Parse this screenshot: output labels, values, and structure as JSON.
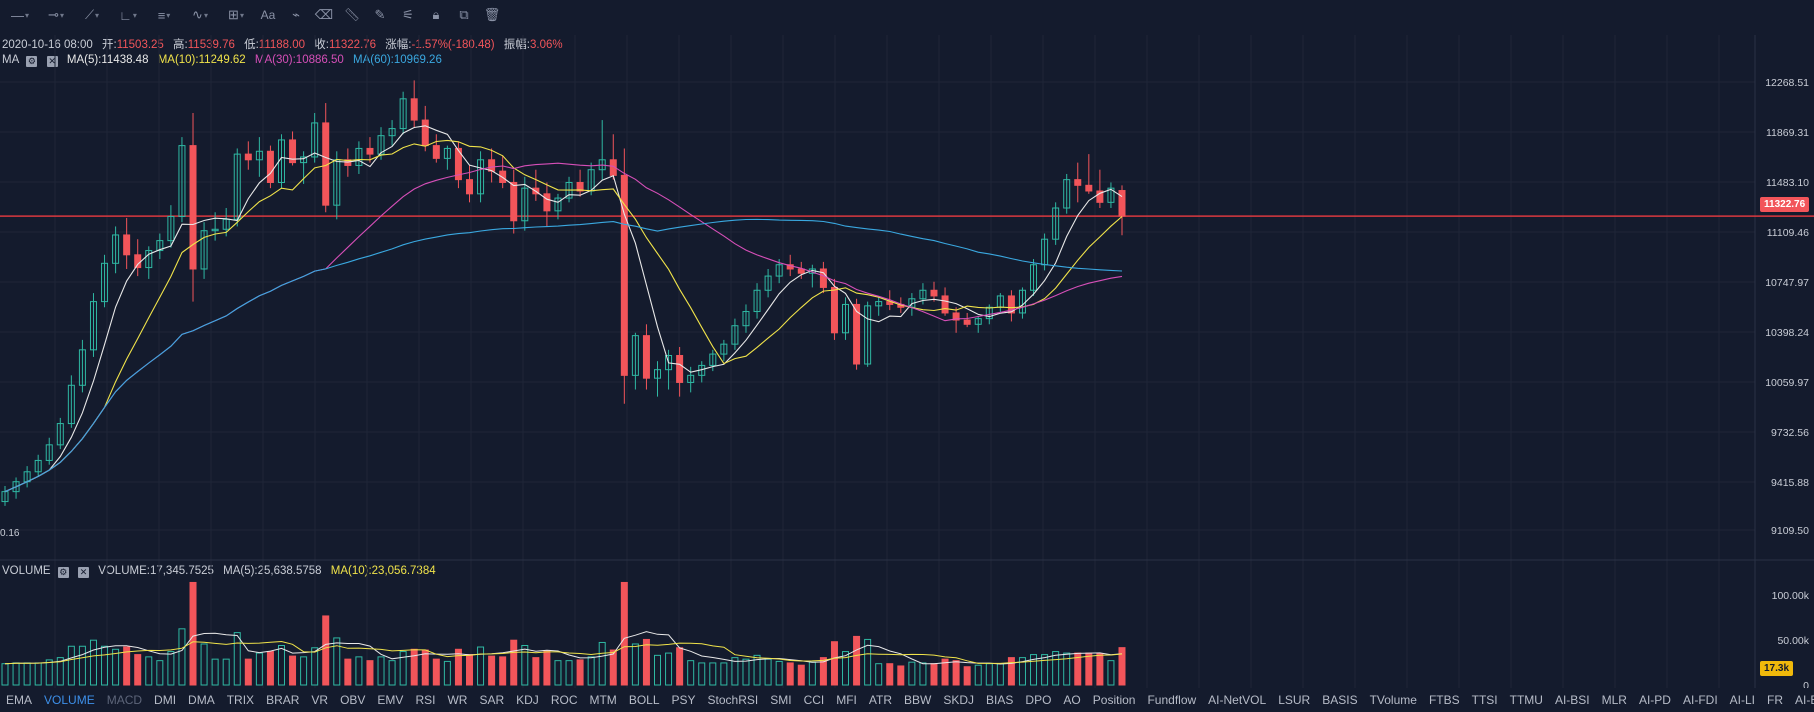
{
  "toolbar": {
    "icons": [
      "horizontal-line-icon",
      "ray-line-icon",
      "trend-line-icon",
      "angle-line-icon",
      "fib-lines-icon",
      "wave-icon",
      "grid-add-icon",
      "text-tool-icon",
      "magnet-icon",
      "eraser-icon",
      "ruler-icon",
      "brush-icon",
      "sliders-icon",
      "lock-icon",
      "copy-icon",
      "trash-icon"
    ],
    "text_tool_label": "Aa"
  },
  "ohlc": {
    "date": "2020-10-16 08:00",
    "open_label": "开:",
    "open": "11503.25",
    "high_label": "高:",
    "high": "11539.76",
    "low_label": "低:",
    "low": "11188.00",
    "close_label": "收:",
    "close": "11322.76",
    "change_label": "涨幅:",
    "change": "-1.57%(-180.48)",
    "amp_label": "振幅:",
    "amp": "3.06%"
  },
  "ma_row": {
    "name": "MA",
    "ma5": "MA(5):11438.48",
    "ma10": "MA(10):11249.62",
    "ma30": "MA(30):10886.50",
    "ma60": "MA(60):10969.26"
  },
  "vol_row": {
    "name": "VOLUME",
    "volume": "VOLUME:17,345.7525",
    "ma5": "MA(5):25,638.5758",
    "ma10": "MA(10):23,056.7384"
  },
  "price_axis": {
    "ticks": [
      "12268.51",
      "11869.31",
      "11483.10",
      "11109.46",
      "10747.97",
      "10398.24",
      "10059.97",
      "9732.56",
      "9415.88",
      "9109.50"
    ],
    "current_price": "11322.76",
    "low_marker": "0.16"
  },
  "volume_axis": {
    "ticks": [
      "100.00k",
      "50.00k",
      "0"
    ],
    "current_volume": "17.3k"
  },
  "colors": {
    "up": "#2fb8a3",
    "down": "#f2555a",
    "ma5": "#e8e8e8",
    "ma10": "#f0e34a",
    "ma30": "#d64fb8",
    "ma60": "#3aa8e0",
    "accent": "#3d8fe8",
    "background": "#141b2d"
  },
  "indicators": {
    "active": "VOLUME",
    "muted": "MACD",
    "items": [
      "EMA",
      "VOLUME",
      "MACD",
      "DMI",
      "DMA",
      "TRIX",
      "BRAR",
      "VR",
      "OBV",
      "EMV",
      "RSI",
      "WR",
      "SAR",
      "KDJ",
      "ROC",
      "MTM",
      "BOLL",
      "PSY",
      "StochRSI",
      "SMI",
      "CCI",
      "MFI",
      "ATR",
      "BBW",
      "SKDJ",
      "BIAS",
      "DPO",
      "AO",
      "Position",
      "Fundflow",
      "AI-NetVOL",
      "LSUR",
      "BASIS",
      "TVolume",
      "FTBS",
      "TTSI",
      "TTMU",
      "AI-BSI",
      "MLR",
      "AI-PD",
      "AI-FDI",
      "AI-LI",
      "FR",
      "AI-BST"
    ]
  },
  "chart_data": {
    "type": "candlestick",
    "price_range": [
      9109.5,
      12268.51
    ],
    "current_price": 11322.76,
    "candles": [
      [
        9310,
        9420,
        9280,
        9380
      ],
      [
        9380,
        9480,
        9330,
        9450
      ],
      [
        9450,
        9560,
        9410,
        9520
      ],
      [
        9520,
        9640,
        9490,
        9600
      ],
      [
        9600,
        9760,
        9570,
        9710
      ],
      [
        9710,
        9900,
        9680,
        9860
      ],
      [
        9860,
        10200,
        9830,
        10130
      ],
      [
        10130,
        10450,
        10080,
        10380
      ],
      [
        10380,
        10780,
        10330,
        10720
      ],
      [
        10720,
        11050,
        10680,
        10990
      ],
      [
        10990,
        11250,
        10920,
        11190
      ],
      [
        11190,
        11310,
        10950,
        11050
      ],
      [
        11050,
        11160,
        10900,
        10960
      ],
      [
        10960,
        11110,
        10880,
        11080
      ],
      [
        11080,
        11200,
        11020,
        11150
      ],
      [
        11150,
        11400,
        11100,
        11320
      ],
      [
        11320,
        11880,
        11280,
        11820
      ],
      [
        11820,
        12050,
        10720,
        10950
      ],
      [
        10950,
        11280,
        10880,
        11220
      ],
      [
        11220,
        11350,
        11150,
        11230
      ],
      [
        11230,
        11380,
        11180,
        11300
      ],
      [
        11300,
        11800,
        11250,
        11760
      ],
      [
        11760,
        11850,
        11650,
        11720
      ],
      [
        11720,
        11880,
        11600,
        11780
      ],
      [
        11780,
        11820,
        11520,
        11560
      ],
      [
        11560,
        11900,
        11520,
        11860
      ],
      [
        11860,
        11920,
        11680,
        11700
      ],
      [
        11700,
        11780,
        11550,
        11740
      ],
      [
        11740,
        12050,
        11700,
        11980
      ],
      [
        11980,
        12120,
        11350,
        11400
      ],
      [
        11400,
        11780,
        11300,
        11720
      ],
      [
        11720,
        11800,
        11600,
        11680
      ],
      [
        11680,
        11850,
        11620,
        11800
      ],
      [
        11800,
        11880,
        11700,
        11760
      ],
      [
        11760,
        11950,
        11720,
        11890
      ],
      [
        11890,
        12000,
        11820,
        11940
      ],
      [
        11940,
        12200,
        11900,
        12150
      ],
      [
        12150,
        12280,
        11950,
        12000
      ],
      [
        12000,
        12100,
        11780,
        11820
      ],
      [
        11820,
        11900,
        11700,
        11730
      ],
      [
        11730,
        11820,
        11650,
        11800
      ],
      [
        11800,
        11850,
        11520,
        11580
      ],
      [
        11580,
        11680,
        11420,
        11480
      ],
      [
        11480,
        11780,
        11420,
        11720
      ],
      [
        11720,
        11800,
        11560,
        11640
      ],
      [
        11640,
        11750,
        11520,
        11560
      ],
      [
        11560,
        11650,
        11200,
        11290
      ],
      [
        11290,
        11600,
        11220,
        11520
      ],
      [
        11520,
        11650,
        11430,
        11480
      ],
      [
        11480,
        11560,
        11250,
        11360
      ],
      [
        11360,
        11480,
        11300,
        11450
      ],
      [
        11450,
        11600,
        11420,
        11560
      ],
      [
        11560,
        11650,
        11460,
        11500
      ],
      [
        11500,
        11700,
        11470,
        11650
      ],
      [
        11650,
        12000,
        11580,
        11720
      ],
      [
        11720,
        11900,
        11580,
        11610
      ],
      [
        11610,
        11800,
        10000,
        10200
      ],
      [
        10200,
        10500,
        10100,
        10480
      ],
      [
        10480,
        10560,
        10100,
        10180
      ],
      [
        10180,
        10300,
        10050,
        10240
      ],
      [
        10240,
        10380,
        10100,
        10340
      ],
      [
        10340,
        10400,
        10050,
        10150
      ],
      [
        10150,
        10260,
        10080,
        10200
      ],
      [
        10200,
        10300,
        10150,
        10270
      ],
      [
        10270,
        10380,
        10230,
        10350
      ],
      [
        10350,
        10450,
        10300,
        10420
      ],
      [
        10420,
        10600,
        10380,
        10550
      ],
      [
        10550,
        10700,
        10500,
        10650
      ],
      [
        10650,
        10850,
        10600,
        10800
      ],
      [
        10800,
        10950,
        10750,
        10900
      ],
      [
        10900,
        11020,
        10850,
        10980
      ],
      [
        10980,
        11050,
        10900,
        10950
      ],
      [
        10950,
        11000,
        10880,
        10920
      ],
      [
        10920,
        10980,
        10820,
        10950
      ],
      [
        10950,
        11000,
        10780,
        10820
      ],
      [
        10820,
        10880,
        10450,
        10500
      ],
      [
        10500,
        10750,
        10450,
        10700
      ],
      [
        10700,
        10740,
        10240,
        10280
      ],
      [
        10280,
        10720,
        10260,
        10690
      ],
      [
        10690,
        10760,
        10620,
        10720
      ],
      [
        10720,
        10800,
        10660,
        10700
      ],
      [
        10700,
        10750,
        10640,
        10680
      ],
      [
        10680,
        10780,
        10620,
        10740
      ],
      [
        10740,
        10850,
        10700,
        10800
      ],
      [
        10800,
        10860,
        10720,
        10760
      ],
      [
        10760,
        10820,
        10620,
        10640
      ],
      [
        10640,
        10680,
        10500,
        10590
      ],
      [
        10590,
        10640,
        10540,
        10560
      ],
      [
        10560,
        10620,
        10500,
        10600
      ],
      [
        10600,
        10700,
        10560,
        10680
      ],
      [
        10680,
        10780,
        10640,
        10760
      ],
      [
        10760,
        10800,
        10580,
        10640
      ],
      [
        10640,
        10820,
        10600,
        10800
      ],
      [
        10800,
        11020,
        10760,
        10980
      ],
      [
        10980,
        11200,
        10940,
        11160
      ],
      [
        11160,
        11420,
        11120,
        11380
      ],
      [
        11380,
        11620,
        11340,
        11580
      ],
      [
        11580,
        11700,
        11420,
        11540
      ],
      [
        11540,
        11760,
        11480,
        11500
      ],
      [
        11500,
        11650,
        11380,
        11420
      ],
      [
        11420,
        11560,
        11380,
        11520
      ],
      [
        11503.25,
        11539.76,
        11188.0,
        11322.76
      ]
    ],
    "volume_range": [
      0,
      120000
    ]
  }
}
